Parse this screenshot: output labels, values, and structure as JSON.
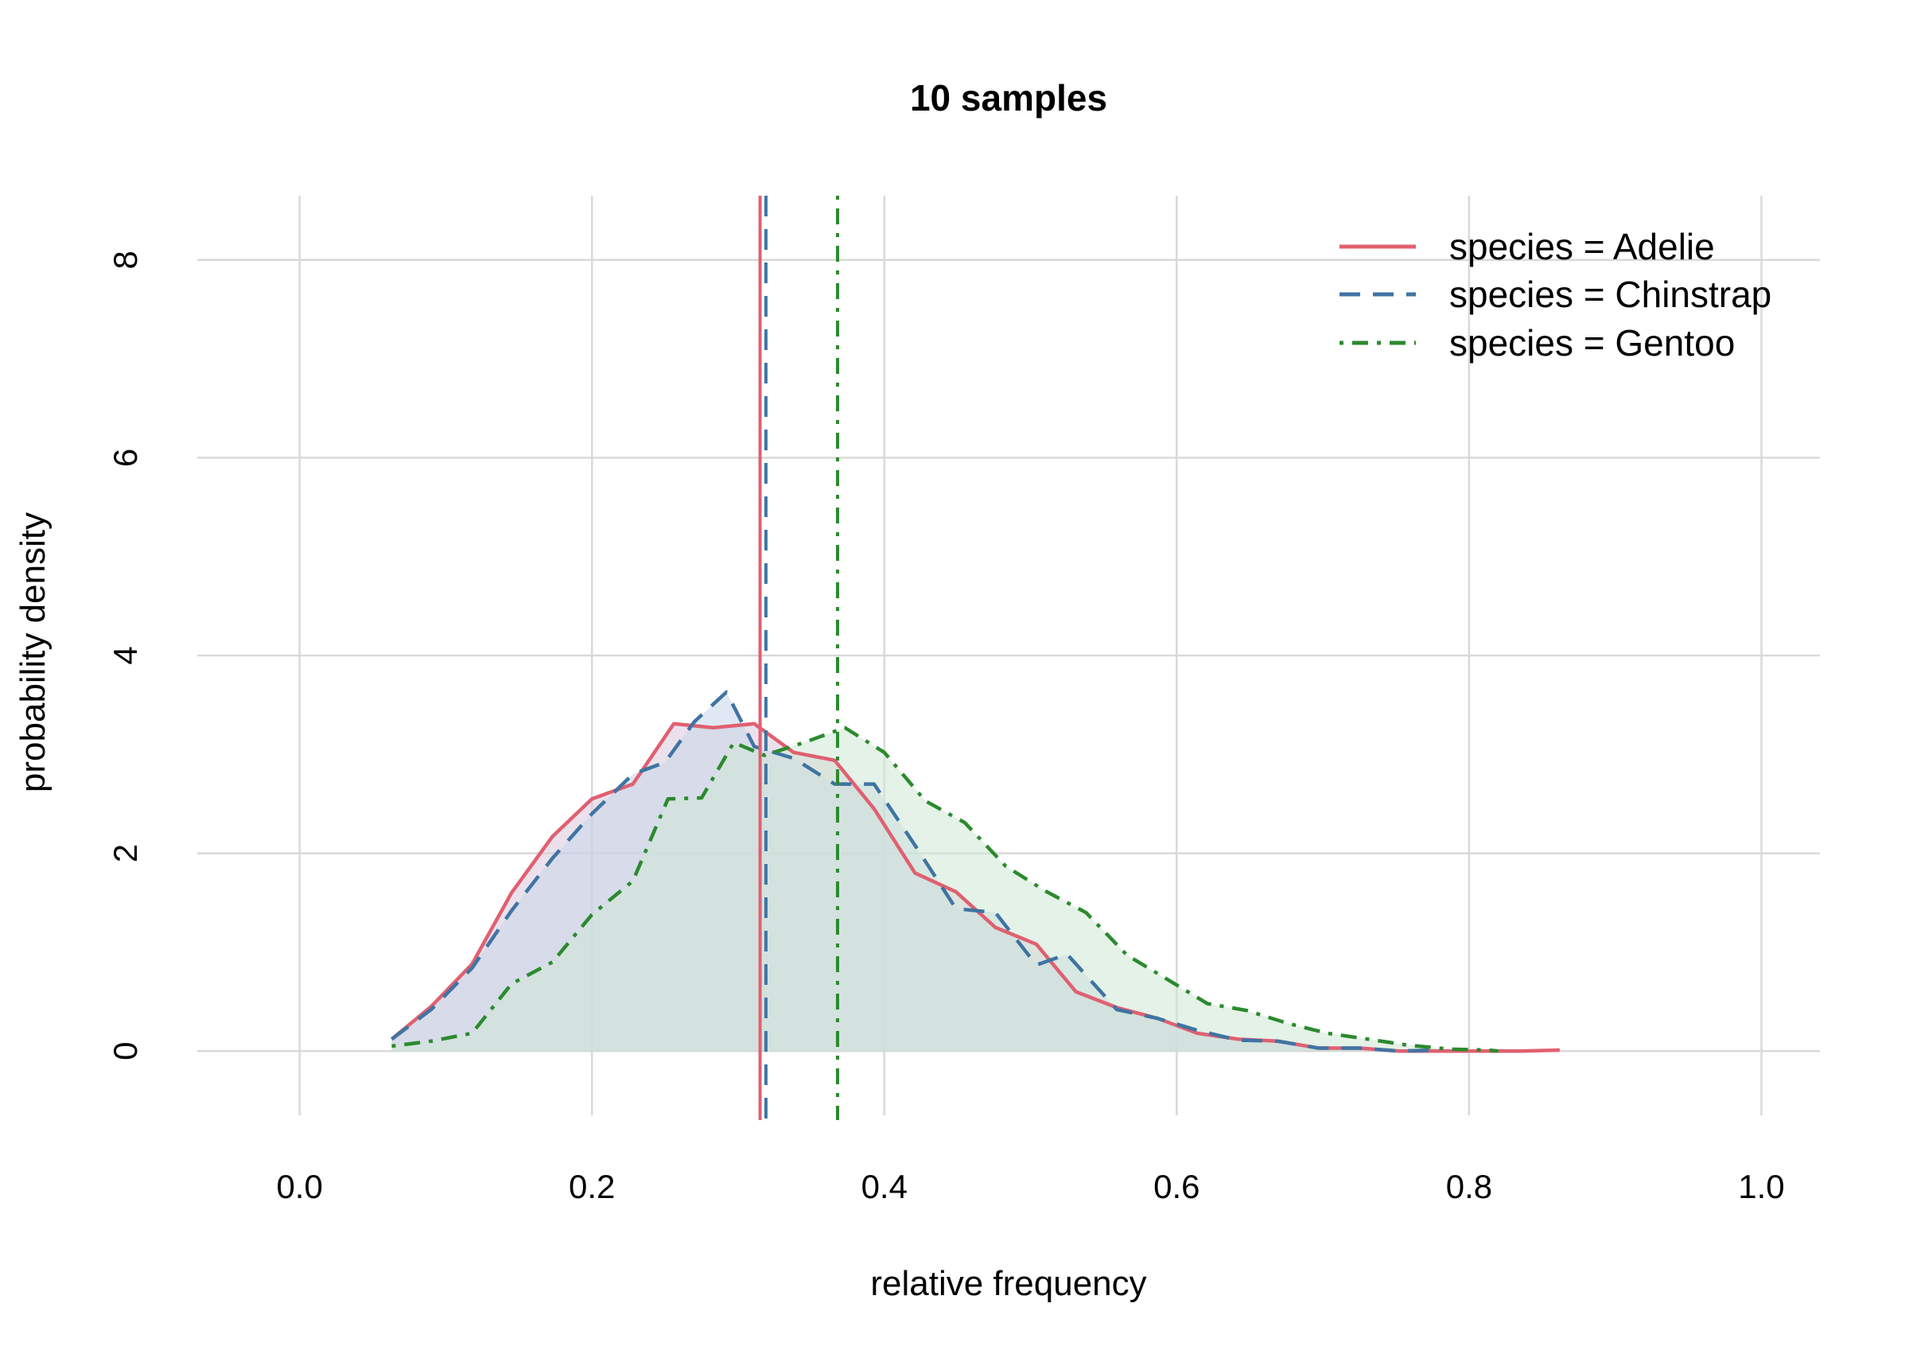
{
  "chart_data": {
    "type": "area",
    "title": "10 samples",
    "xlabel": "relative frequency",
    "ylabel": "probability density",
    "xlim": [
      -0.07,
      1.04
    ],
    "ylim": [
      -0.65,
      8.65
    ],
    "x_ticks": [
      0.0,
      0.2,
      0.4,
      0.6,
      0.8,
      1.0
    ],
    "x_tick_labels": [
      "0.0",
      "0.2",
      "0.4",
      "0.6",
      "0.8",
      "1.0"
    ],
    "y_ticks": [
      0,
      2,
      4,
      6,
      8
    ],
    "y_tick_labels": [
      "0",
      "2",
      "4",
      "6",
      "8"
    ],
    "grid": true,
    "legend_position": "top-right",
    "series": [
      {
        "name": "species = Adelie",
        "color": "#e06071",
        "fill": "#d8c9dd",
        "dash": "solid",
        "mean": 0.315,
        "points": [
          [
            0.063,
            0.12
          ],
          [
            0.09,
            0.45
          ],
          [
            0.118,
            0.88
          ],
          [
            0.145,
            1.6
          ],
          [
            0.173,
            2.17
          ],
          [
            0.2,
            2.55
          ],
          [
            0.228,
            2.7
          ],
          [
            0.256,
            3.31
          ],
          [
            0.283,
            3.27
          ],
          [
            0.311,
            3.31
          ],
          [
            0.338,
            3.02
          ],
          [
            0.366,
            2.94
          ],
          [
            0.393,
            2.45
          ],
          [
            0.421,
            1.8
          ],
          [
            0.449,
            1.61
          ],
          [
            0.476,
            1.25
          ],
          [
            0.504,
            1.08
          ],
          [
            0.531,
            0.6
          ],
          [
            0.559,
            0.44
          ],
          [
            0.587,
            0.33
          ],
          [
            0.614,
            0.18
          ],
          [
            0.642,
            0.12
          ],
          [
            0.669,
            0.1
          ],
          [
            0.697,
            0.03
          ],
          [
            0.725,
            0.03
          ],
          [
            0.752,
            0.0
          ],
          [
            0.78,
            0.0
          ],
          [
            0.807,
            0.0
          ],
          [
            0.835,
            0.0
          ],
          [
            0.862,
            0.01
          ]
        ]
      },
      {
        "name": "species = Chinstrap",
        "color": "#3f74a3",
        "fill": "#c7d7ea",
        "dash": "dashed",
        "mean": 0.319,
        "points": [
          [
            0.063,
            0.12
          ],
          [
            0.09,
            0.42
          ],
          [
            0.118,
            0.84
          ],
          [
            0.145,
            1.42
          ],
          [
            0.173,
            1.95
          ],
          [
            0.2,
            2.4
          ],
          [
            0.228,
            2.8
          ],
          [
            0.25,
            2.92
          ],
          [
            0.27,
            3.33
          ],
          [
            0.292,
            3.63
          ],
          [
            0.311,
            3.08
          ],
          [
            0.338,
            2.96
          ],
          [
            0.366,
            2.7
          ],
          [
            0.393,
            2.7
          ],
          [
            0.421,
            2.08
          ],
          [
            0.449,
            1.44
          ],
          [
            0.476,
            1.4
          ],
          [
            0.504,
            0.87
          ],
          [
            0.525,
            0.98
          ],
          [
            0.559,
            0.42
          ],
          [
            0.587,
            0.33
          ],
          [
            0.614,
            0.21
          ],
          [
            0.642,
            0.11
          ],
          [
            0.669,
            0.1
          ],
          [
            0.697,
            0.03
          ],
          [
            0.725,
            0.03
          ],
          [
            0.752,
            0.0
          ],
          [
            0.78,
            0.01
          ]
        ]
      },
      {
        "name": "species = Gentoo",
        "color": "#2b8a2e",
        "fill": "#cfe8d4",
        "dash": "dotdash",
        "mean": 0.368,
        "points": [
          [
            0.063,
            0.05
          ],
          [
            0.09,
            0.1
          ],
          [
            0.118,
            0.18
          ],
          [
            0.145,
            0.68
          ],
          [
            0.173,
            0.9
          ],
          [
            0.2,
            1.38
          ],
          [
            0.228,
            1.72
          ],
          [
            0.252,
            2.55
          ],
          [
            0.275,
            2.56
          ],
          [
            0.297,
            3.12
          ],
          [
            0.318,
            2.99
          ],
          [
            0.345,
            3.12
          ],
          [
            0.373,
            3.27
          ],
          [
            0.4,
            3.02
          ],
          [
            0.428,
            2.53
          ],
          [
            0.455,
            2.31
          ],
          [
            0.483,
            1.87
          ],
          [
            0.51,
            1.62
          ],
          [
            0.538,
            1.4
          ],
          [
            0.566,
            0.97
          ],
          [
            0.593,
            0.73
          ],
          [
            0.621,
            0.48
          ],
          [
            0.648,
            0.41
          ],
          [
            0.676,
            0.28
          ],
          [
            0.703,
            0.18
          ],
          [
            0.731,
            0.12
          ],
          [
            0.758,
            0.06
          ],
          [
            0.786,
            0.02
          ],
          [
            0.813,
            0.01
          ],
          [
            0.82,
            0.0
          ]
        ]
      }
    ]
  }
}
